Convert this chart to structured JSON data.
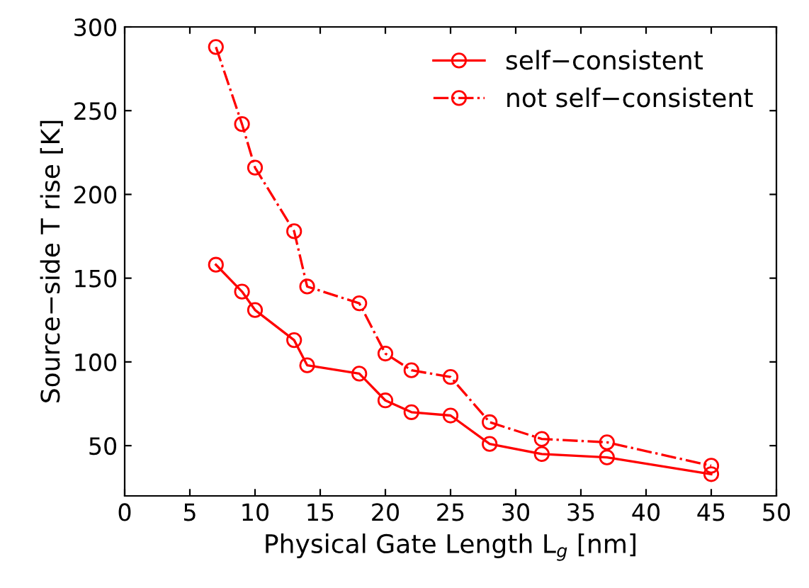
{
  "chart_data": {
    "type": "line",
    "xlabel": "Physical Gate Length L$_{g}$ [nm]",
    "ylabel": "Source−side T rise [K]",
    "x": [
      7,
      9,
      10,
      13,
      14,
      18,
      20,
      22,
      25,
      28,
      32,
      37,
      45
    ],
    "series": [
      {
        "name": "self−consistent",
        "color": "#ff0000",
        "line_style": "solid",
        "values": [
          158,
          142,
          131,
          113,
          98,
          93,
          77,
          70,
          68,
          51,
          45,
          43,
          33
        ]
      },
      {
        "name": "not self−consistent",
        "color": "#ff0000",
        "line_style": "dashdot",
        "values": [
          288,
          242,
          216,
          178,
          145,
          135,
          105,
          95,
          91,
          64,
          54,
          52,
          38
        ]
      }
    ],
    "marker": "circle",
    "xlim": [
      0,
      50
    ],
    "xticks": [
      0,
      5,
      10,
      15,
      20,
      25,
      30,
      35,
      40,
      45,
      50
    ],
    "ylim": [
      20,
      300
    ],
    "yticks": [
      50,
      100,
      150,
      200,
      250,
      300
    ],
    "grid": false,
    "legend": "top right"
  }
}
